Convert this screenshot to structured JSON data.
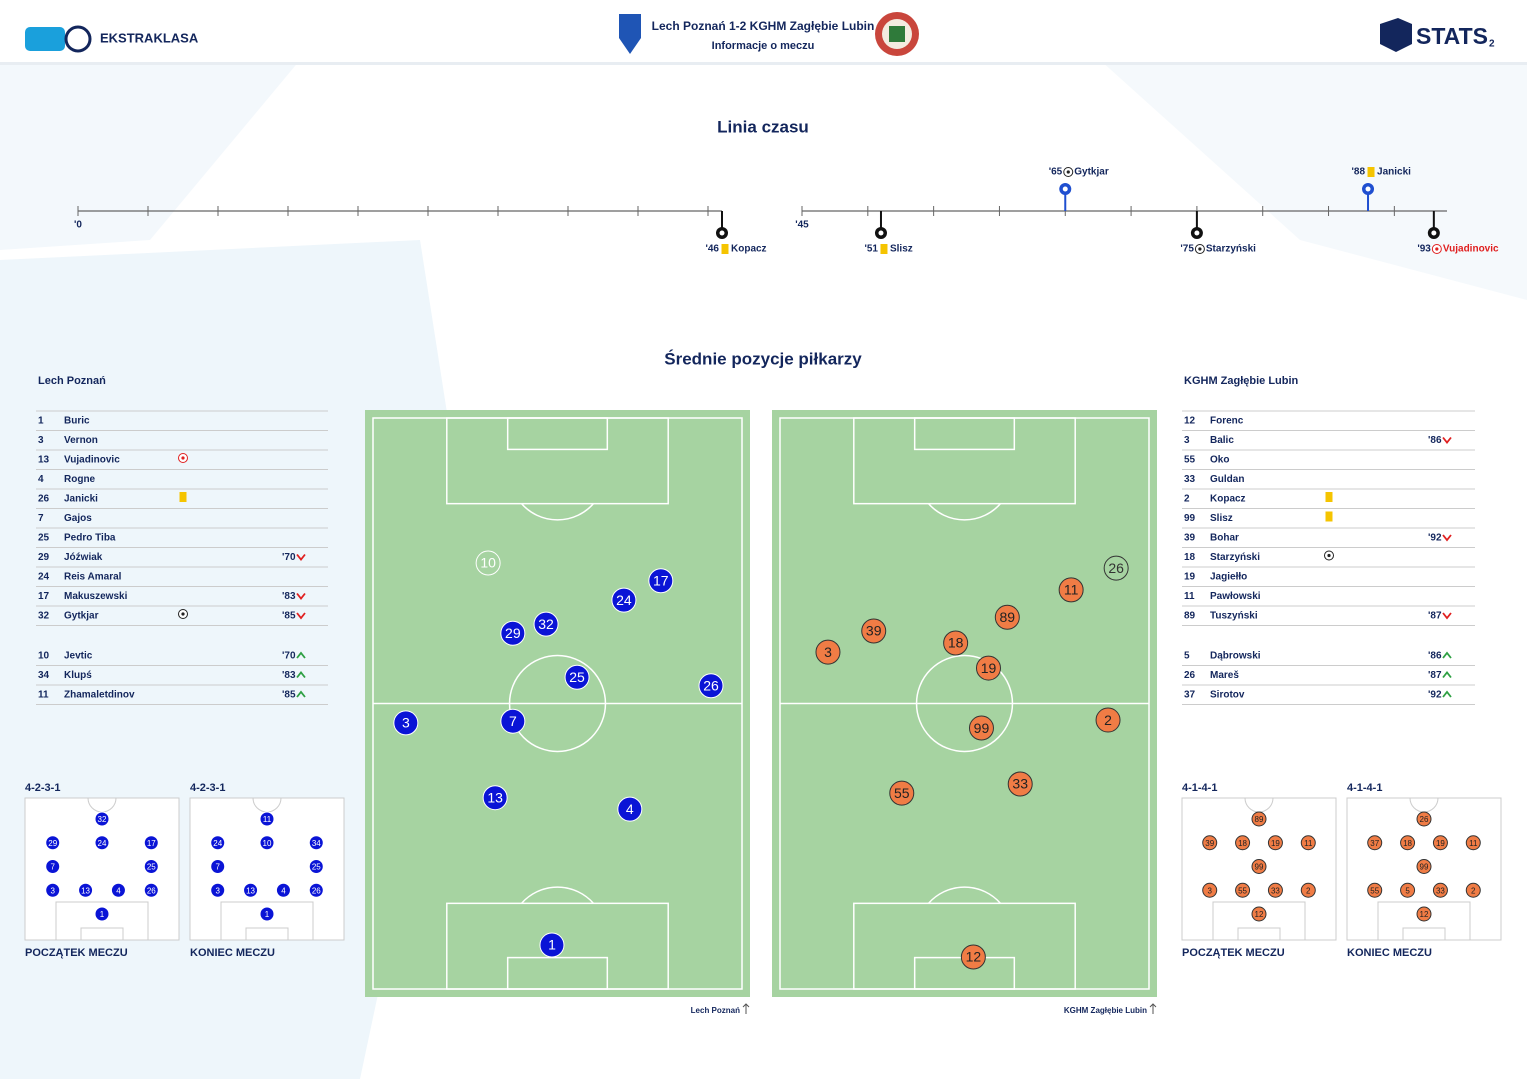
{
  "header": {
    "league": "EKSTRAKLASA",
    "title": "Lech Poznań 1-2 KGHM Zagłębie Lubin",
    "subtitle": "Informacje o meczu",
    "brand": "STATS",
    "page": "2"
  },
  "timeline": {
    "title": "Linia czasu",
    "halves": [
      {
        "start": {
          "value": 0,
          "label": "'0"
        },
        "lim": [
          0,
          46
        ],
        "events": [
          {
            "minute": {
              "value": 46,
              "label": "'46"
            },
            "player": "Kopacz",
            "type": "yellow-card",
            "team": "away"
          }
        ]
      },
      {
        "start": {
          "value": 45,
          "label": "'45"
        },
        "lim": [
          45,
          94
        ],
        "events": [
          {
            "minute": {
              "value": 51,
              "label": "'51"
            },
            "player": "Slisz",
            "type": "yellow-card",
            "team": "away"
          },
          {
            "minute": {
              "value": 65,
              "label": "'65"
            },
            "player": "Gytkjar",
            "type": "goal",
            "team": "home"
          },
          {
            "minute": {
              "value": 75,
              "label": "'75"
            },
            "player": "Starzyński",
            "type": "goal",
            "team": "away"
          },
          {
            "minute": {
              "value": 88,
              "label": "'88"
            },
            "player": "Janicki",
            "type": "yellow-card",
            "team": "home"
          },
          {
            "minute": {
              "value": 93,
              "label": "'93"
            },
            "player": "Vujadinovic",
            "type": "own-goal",
            "team": "away"
          }
        ]
      }
    ]
  },
  "positions_title": "Średnie pozycje piłkarzy",
  "teams": [
    {
      "name": "Lech Poznań",
      "color": "#0a14d6",
      "players": [
        {
          "number": 1,
          "name": "Buric"
        },
        {
          "number": 3,
          "name": "Vernon"
        },
        {
          "number": 13,
          "name": "Vujadinovic",
          "event": "own-goal"
        },
        {
          "number": 4,
          "name": "Rogne"
        },
        {
          "number": 26,
          "name": "Janicki",
          "event": "yellow-card"
        },
        {
          "number": 7,
          "name": "Gajos"
        },
        {
          "number": 25,
          "name": "Pedro Tiba"
        },
        {
          "number": 29,
          "name": "Jóźwiak",
          "sub": {
            "minute": "'70",
            "dir": "out"
          }
        },
        {
          "number": 24,
          "name": "Reis Amaral"
        },
        {
          "number": 17,
          "name": "Makuszewski",
          "sub": {
            "minute": "'83",
            "dir": "out"
          }
        },
        {
          "number": 32,
          "name": "Gytkjar",
          "event": "goal",
          "sub": {
            "minute": "'85",
            "dir": "out"
          }
        }
      ],
      "subs": [
        {
          "number": 10,
          "name": "Jevtic",
          "sub": {
            "minute": "'70",
            "dir": "in"
          }
        },
        {
          "number": 34,
          "name": "Klupś",
          "sub": {
            "minute": "'83",
            "dir": "in"
          }
        },
        {
          "number": 11,
          "name": "Zhamaletdinov",
          "sub": {
            "minute": "'85",
            "dir": "in"
          }
        }
      ],
      "positions": [
        {
          "number": 10,
          "x": 31.2,
          "y": 25.4,
          "sub": true
        },
        {
          "number": 17,
          "x": 78.0,
          "y": 28.5
        },
        {
          "number": 24,
          "x": 68.0,
          "y": 31.9
        },
        {
          "number": 32,
          "x": 46.9,
          "y": 36.1
        },
        {
          "number": 29,
          "x": 37.9,
          "y": 37.7
        },
        {
          "number": 25,
          "x": 55.3,
          "y": 45.4
        },
        {
          "number": 26,
          "x": 91.6,
          "y": 46.9
        },
        {
          "number": 3,
          "x": 8.9,
          "y": 53.4
        },
        {
          "number": 7,
          "x": 37.9,
          "y": 53.1
        },
        {
          "number": 13,
          "x": 33.1,
          "y": 66.5
        },
        {
          "number": 4,
          "x": 69.6,
          "y": 68.5
        },
        {
          "number": 1,
          "x": 48.5,
          "y": 92.3
        }
      ],
      "formations": [
        {
          "label": "4-2-3-1",
          "caption": "POCZĄTEK MECZU",
          "rows": [
            [
              32
            ],
            [
              29,
              24,
              17
            ],
            [
              7,
              25
            ],
            [
              3,
              13,
              4,
              26
            ],
            [
              1
            ]
          ]
        },
        {
          "label": "4-2-3-1",
          "caption": "KONIEC MECZU",
          "rows": [
            [
              11
            ],
            [
              24,
              10,
              34
            ],
            [
              7,
              25
            ],
            [
              3,
              13,
              4,
              26
            ],
            [
              1
            ]
          ]
        }
      ]
    },
    {
      "name": "KGHM Zagłębie Lubin",
      "color": "#f07c45",
      "players": [
        {
          "number": 12,
          "name": "Forenc"
        },
        {
          "number": 3,
          "name": "Balic",
          "sub": {
            "minute": "'86",
            "dir": "out"
          }
        },
        {
          "number": 55,
          "name": "Oko"
        },
        {
          "number": 33,
          "name": "Guldan"
        },
        {
          "number": 2,
          "name": "Kopacz",
          "event": "yellow-card"
        },
        {
          "number": 99,
          "name": "Slisz",
          "event": "yellow-card"
        },
        {
          "number": 39,
          "name": "Bohar",
          "sub": {
            "minute": "'92",
            "dir": "out"
          }
        },
        {
          "number": 18,
          "name": "Starzyński",
          "event": "goal"
        },
        {
          "number": 19,
          "name": "Jagiełło"
        },
        {
          "number": 11,
          "name": "Pawłowski"
        },
        {
          "number": 89,
          "name": "Tuszyński",
          "sub": {
            "minute": "'87",
            "dir": "out"
          }
        }
      ],
      "subs": [
        {
          "number": 5,
          "name": "Dąbrowski",
          "sub": {
            "minute": "'86",
            "dir": "in"
          }
        },
        {
          "number": 26,
          "name": "Mareš",
          "sub": {
            "minute": "'87",
            "dir": "in"
          }
        },
        {
          "number": 37,
          "name": "Sirotov",
          "sub": {
            "minute": "'92",
            "dir": "in"
          }
        }
      ],
      "positions": [
        {
          "number": 26,
          "x": 91.1,
          "y": 26.3,
          "sub": true
        },
        {
          "number": 11,
          "x": 78.9,
          "y": 30.1
        },
        {
          "number": 89,
          "x": 61.6,
          "y": 34.9
        },
        {
          "number": 39,
          "x": 25.4,
          "y": 37.3
        },
        {
          "number": 18,
          "x": 47.6,
          "y": 39.4
        },
        {
          "number": 3,
          "x": 13.0,
          "y": 41.0
        },
        {
          "number": 19,
          "x": 56.5,
          "y": 43.8
        },
        {
          "number": 2,
          "x": 88.9,
          "y": 52.9
        },
        {
          "number": 99,
          "x": 54.6,
          "y": 54.3
        },
        {
          "number": 33,
          "x": 65.1,
          "y": 64.1
        },
        {
          "number": 55,
          "x": 33.0,
          "y": 65.7
        },
        {
          "number": 12,
          "x": 52.4,
          "y": 94.4
        }
      ],
      "formations": [
        {
          "label": "4-1-4-1",
          "caption": "POCZĄTEK MECZU",
          "rows": [
            [
              89
            ],
            [
              39,
              18,
              19,
              11
            ],
            [
              99
            ],
            [
              3,
              55,
              33,
              2
            ],
            [
              12
            ]
          ]
        },
        {
          "label": "4-1-4-1",
          "caption": "KONIEC MECZU",
          "rows": [
            [
              26
            ],
            [
              37,
              18,
              19,
              11
            ],
            [
              99
            ],
            [
              55,
              5,
              33,
              2
            ],
            [
              12
            ]
          ]
        }
      ]
    }
  ]
}
